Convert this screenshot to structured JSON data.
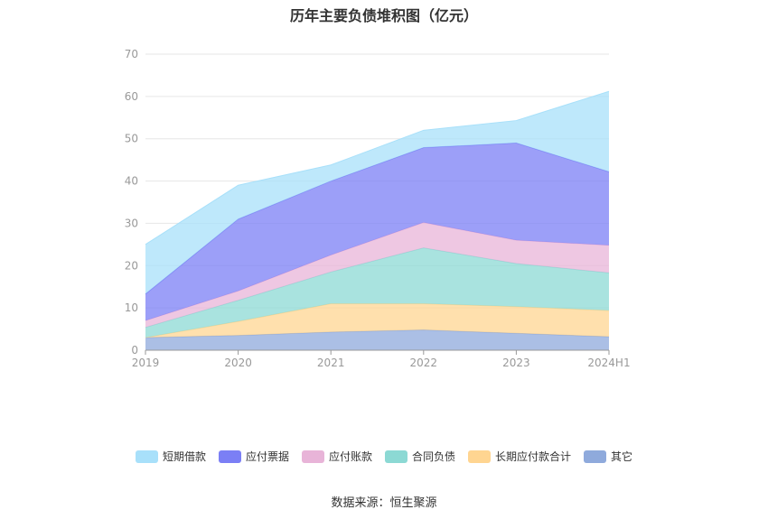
{
  "chart_data": {
    "type": "area",
    "stacked": true,
    "title": "历年主要负债堆积图（亿元）",
    "categories": [
      "2019",
      "2020",
      "2021",
      "2022",
      "2023",
      "2024H1"
    ],
    "ylim": [
      0,
      70
    ],
    "yticks": [
      0,
      10,
      20,
      30,
      40,
      50,
      60,
      70
    ],
    "grid": true,
    "legend_position": "bottom",
    "series": [
      {
        "name": "其它",
        "color": "#8faadc",
        "values": [
          3.0,
          3.5,
          4.3,
          4.8,
          4.0,
          3.2
        ]
      },
      {
        "name": "长期应付款合计",
        "color": "#ffd591",
        "values": [
          0.0,
          3.3,
          6.7,
          6.2,
          6.3,
          6.2
        ]
      },
      {
        "name": "合同负债",
        "color": "#8cd9d4",
        "values": [
          2.4,
          5.0,
          7.5,
          13.2,
          10.2,
          8.9
        ]
      },
      {
        "name": "应付账款",
        "color": "#e8b4d8",
        "values": [
          1.6,
          2.2,
          4.0,
          6.0,
          5.5,
          6.5
        ]
      },
      {
        "name": "应付票据",
        "color": "#7b7ff5",
        "values": [
          6.3,
          17.0,
          17.5,
          17.7,
          23.0,
          17.4
        ]
      },
      {
        "name": "短期借款",
        "color": "#a8e0fa",
        "values": [
          11.7,
          8.0,
          3.8,
          4.1,
          5.3,
          19.0
        ]
      }
    ]
  },
  "legend_order": [
    "短期借款",
    "应付票据",
    "应付账款",
    "合同负债",
    "长期应付款合计",
    "其它"
  ],
  "source": "数据来源：恒生聚源"
}
